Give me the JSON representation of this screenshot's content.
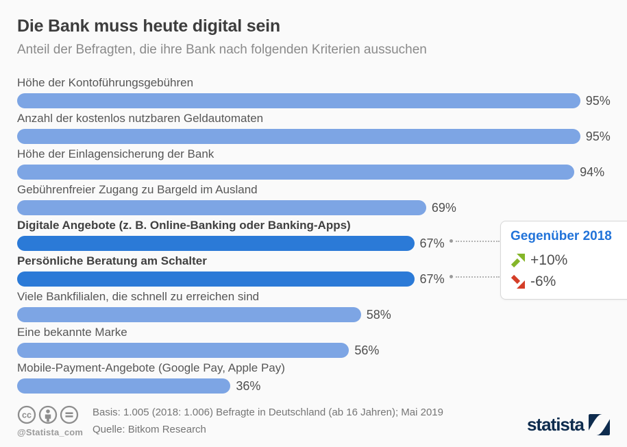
{
  "header": {
    "title": "Die Bank muss heute digital sein",
    "subtitle": "Anteil der Befragten, die ihre Bank nach folgenden Kriterien aussuchen"
  },
  "chart_data": {
    "type": "bar",
    "orientation": "horizontal",
    "categories": [
      "Höhe der Kontoführungsgebühren",
      "Anzahl der kostenlos nutzbaren Geldautomaten",
      "Höhe der Einlagensicherung der Bank",
      "Gebührenfreier Zugang zu Bargeld im Ausland",
      "Digitale Angebote (z. B. Online-Banking oder Banking-Apps)",
      "Persönliche Beratung am Schalter",
      "Viele Bankfilialen, die schnell zu erreichen sind",
      "Eine bekannte Marke",
      "Mobile-Payment-Angebote (Google Pay, Apple Pay)"
    ],
    "values": [
      95,
      95,
      94,
      69,
      67,
      67,
      58,
      56,
      36
    ],
    "value_suffix": "%",
    "highlighted_indices": [
      4,
      5
    ],
    "xlim": [
      0,
      100
    ],
    "grid": false,
    "legend": false,
    "colors": {
      "bar": "#7DA5E4",
      "bar_highlight": "#2B7AD7"
    }
  },
  "callout": {
    "title": "Gegenüber 2018",
    "title_color": "#2173D9",
    "items": [
      {
        "icon": "arrow-up-right-icon",
        "color": "#85B629",
        "label": "+10%"
      },
      {
        "icon": "arrow-down-right-icon",
        "color": "#D43E28",
        "label": "-6%"
      }
    ]
  },
  "footer": {
    "license_icons": [
      "cc-icon",
      "attribution-icon",
      "no-derivatives-icon"
    ],
    "handle": "@Statista_com",
    "basis": "Basis: 1.005 (2018: 1.006) Befragte in Deutschland (ab 16 Jahren); Mai 2019",
    "source": "Quelle: Bitkom Research",
    "brand": "statista",
    "brand_color": "#0E2C4E"
  }
}
